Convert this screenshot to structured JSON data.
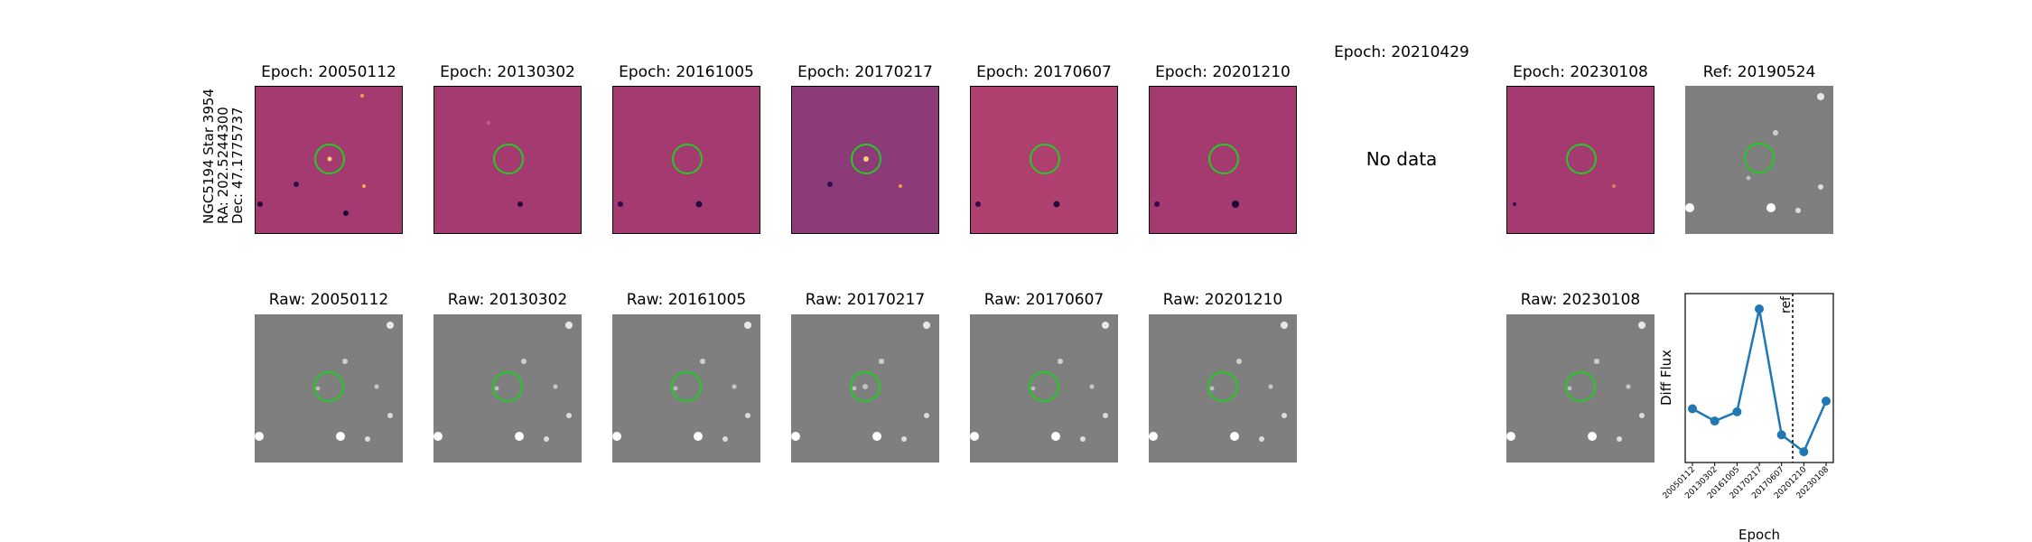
{
  "target": {
    "name_line": "NGC5194 Star 3954",
    "ra_line": "RA: 202.5244300",
    "dec_line": "Dec: 47.1775737"
  },
  "diff_row": [
    {
      "title": "Epoch: 20050112",
      "has_data": true
    },
    {
      "title": "Epoch: 20130302",
      "has_data": true
    },
    {
      "title": "Epoch: 20161005",
      "has_data": true
    },
    {
      "title": "Epoch: 20170217",
      "has_data": true
    },
    {
      "title": "Epoch: 20170607",
      "has_data": true
    },
    {
      "title": "Epoch: 20201210",
      "has_data": true
    },
    {
      "title": "Epoch: 20210429",
      "has_data": false,
      "no_data_text": "No data"
    },
    {
      "title": "Epoch: 20230108",
      "has_data": true
    }
  ],
  "ref": {
    "title": "Ref: 20190524"
  },
  "raw_row": [
    {
      "title": "Raw: 20050112"
    },
    {
      "title": "Raw: 20130302"
    },
    {
      "title": "Raw: 20161005"
    },
    {
      "title": "Raw: 20170217"
    },
    {
      "title": "Raw: 20170607"
    },
    {
      "title": "Raw: 20201210"
    },
    {
      "title": ""
    },
    {
      "title": "Raw: 20230108"
    }
  ],
  "colors": {
    "aperture": "#22cc22",
    "series": "#1f77b4",
    "diff_background": "#a53a70",
    "raw_background": "#7f7f7f"
  },
  "chart_data": {
    "type": "line",
    "xlabel": "Epoch",
    "ylabel": "Diff Flux",
    "categories": [
      "20050112",
      "20130302",
      "20161005",
      "20170217",
      "20170607",
      "20201210",
      "20230108"
    ],
    "values": [
      0.3,
      0.22,
      0.28,
      0.95,
      0.13,
      0.02,
      0.35
    ],
    "ylim": [
      -0.05,
      1.05
    ],
    "ref_line": {
      "x_after_index": 4.5,
      "label": "ref"
    },
    "yticks": "none"
  }
}
